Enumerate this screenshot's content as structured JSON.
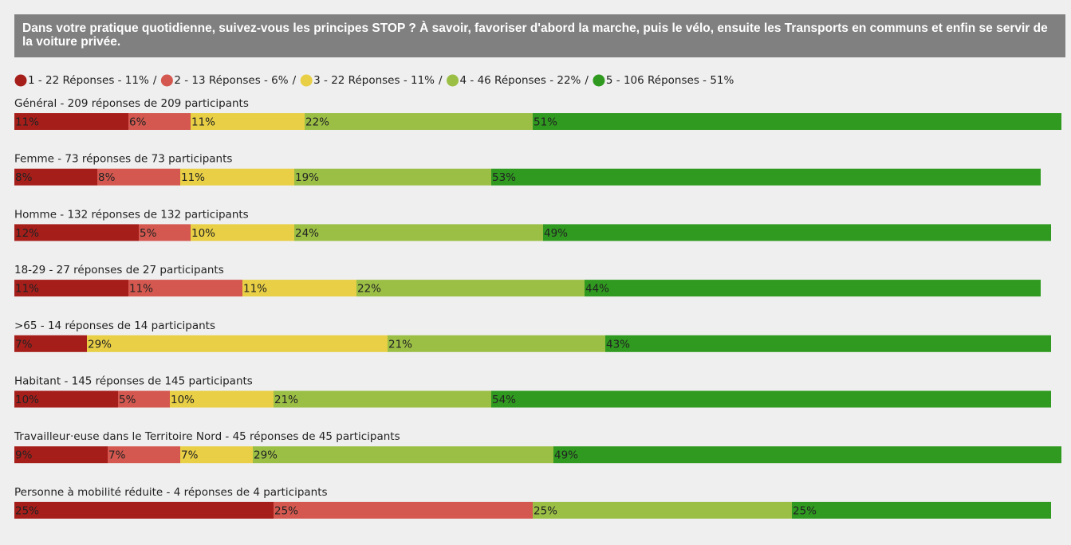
{
  "chart_data": {
    "type": "stacked-bar-horizontal",
    "title": "Dans votre pratique quotidienne, suivez-vous les principes STOP ? À savoir, favoriser d'abord la marche, puis le vélo, ensuite les Transports en communs et enfin se servir de la voiture privée.",
    "legend_separator": "/",
    "xlim": [
      0,
      100
    ],
    "categories": [
      "Général - 209 réponses de 209 participants",
      "Femme - 73 réponses de 73 participants",
      "Homme - 132 réponses de 132 participants",
      "18-29 - 27 réponses de 27 participants",
      ">65 - 14 réponses de 14 participants",
      "Habitant - 145 réponses de 145 participants",
      "Travailleur·euse dans le Territoire Nord - 45 réponses de 45 participants",
      "Personne à mobilité réduite - 4 réponses de 4 participants"
    ],
    "series": [
      {
        "name": "1 - 22 Réponses - 11%",
        "color": "#a61e1a",
        "values": [
          11,
          8,
          12,
          11,
          7,
          10,
          9,
          25
        ],
        "value_labels": [
          "11%",
          "8%",
          "12%",
          "11%",
          "7%",
          "10%",
          "9%",
          "25%"
        ]
      },
      {
        "name": "2 - 13 Réponses - 6%",
        "color": "#d4584f",
        "values": [
          6,
          8,
          5,
          11,
          null,
          5,
          7,
          25
        ],
        "value_labels": [
          "6%",
          "8%",
          "5%",
          "11%",
          null,
          "5%",
          "7%",
          "25%"
        ]
      },
      {
        "name": "3 - 22 Réponses - 11%",
        "color": "#e8cf45",
        "values": [
          11,
          11,
          10,
          11,
          29,
          10,
          7,
          null
        ],
        "value_labels": [
          "11%",
          "11%",
          "10%",
          "11%",
          "29%",
          "10%",
          "7%",
          null
        ]
      },
      {
        "name": "4 - 46 Réponses - 22%",
        "color": "#9bbf45",
        "values": [
          22,
          19,
          24,
          22,
          21,
          21,
          29,
          25
        ],
        "value_labels": [
          "22%",
          "19%",
          "24%",
          "22%",
          "21%",
          "21%",
          "29%",
          "25%"
        ]
      },
      {
        "name": "5 - 106 Réponses - 51%",
        "color": "#2f9a1f",
        "values": [
          51,
          53,
          49,
          44,
          43,
          54,
          49,
          25
        ],
        "value_labels": [
          "51%",
          "53%",
          "49%",
          "44%",
          "43%",
          "54%",
          "49%",
          "25%"
        ]
      }
    ]
  }
}
